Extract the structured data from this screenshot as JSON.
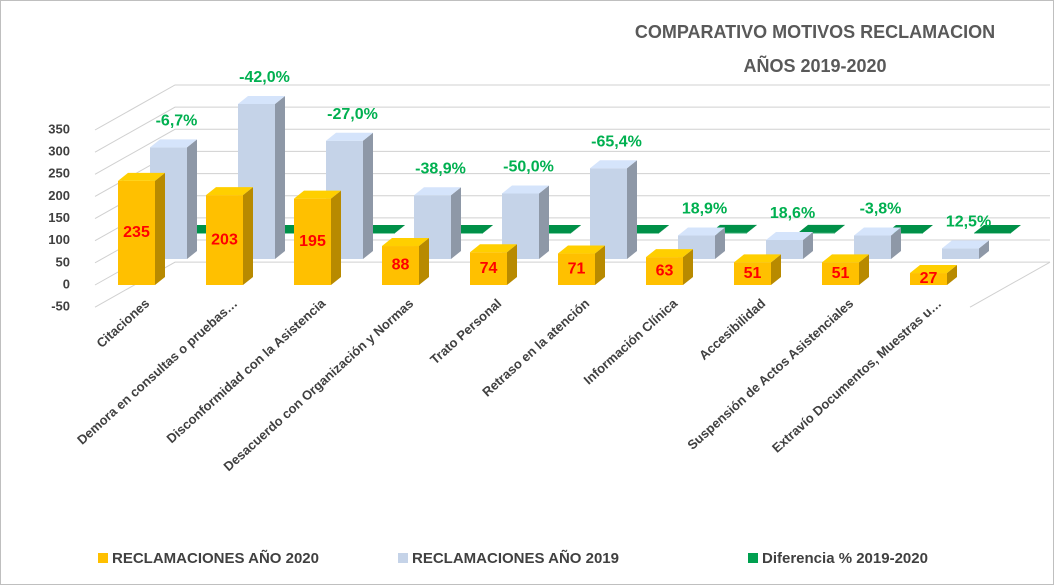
{
  "chart_data": {
    "type": "bar3d",
    "title": "COMPARATIVO MOTIVOS RECLAMACION",
    "subtitle": "AÑOS 2019-2020",
    "categories": [
      "Citaciones",
      "Demora en consultas o pruebas…",
      "Disconformidad con la Asistencia",
      "Desacuerdo con Organización y Normas",
      "Trato Personal",
      "Retraso en la atención",
      "Información Clínica",
      "Accesibilidad",
      "Suspensión de Actos Asistenciales",
      "Extravío Documentos, Muestras u…"
    ],
    "series": [
      {
        "name": "RECLAMACIONES  AÑO 2020",
        "color": "#FFC000",
        "values": [
          235,
          203,
          195,
          88,
          74,
          71,
          63,
          51,
          51,
          27
        ]
      },
      {
        "name": "RECLAMACIONES  AÑO 2019",
        "color": "#C5D3E8",
        "values": [
          252,
          350,
          267,
          144,
          148,
          205,
          53,
          43,
          53,
          24
        ]
      },
      {
        "name": "Diferencia %  2019-2020",
        "color": "#00A050",
        "values": [
          -0.067,
          -0.42,
          -0.27,
          -0.389,
          -0.5,
          -0.654,
          0.189,
          0.186,
          -0.038,
          0.125
        ],
        "value_labels": [
          "-6,7%",
          "-42,0%",
          "-27,0%",
          "-38,9%",
          "-50,0%",
          "-65,4%",
          "18,9%",
          "18,6%",
          "-3,8%",
          "12,5%"
        ]
      }
    ],
    "ylim": [
      -50,
      350
    ],
    "yticks": [
      -50,
      0,
      50,
      100,
      150,
      200,
      250,
      300,
      350
    ],
    "grid": true,
    "legend": "bottom"
  }
}
